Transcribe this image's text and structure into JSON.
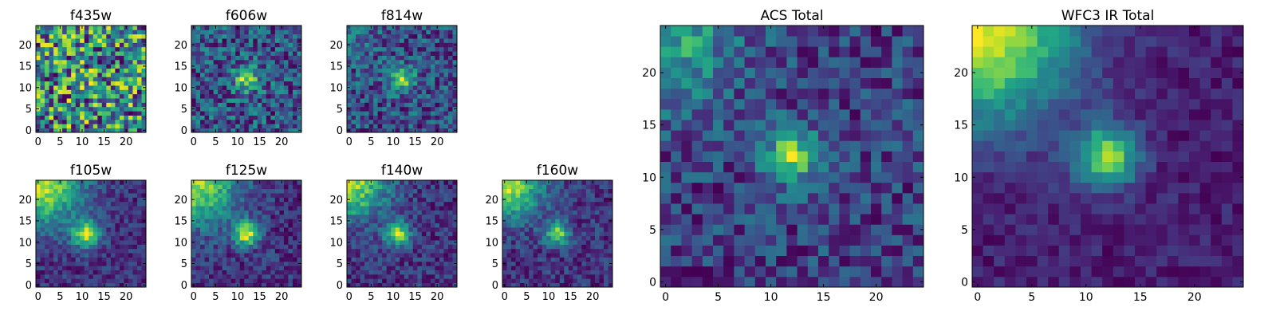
{
  "chart_data": [
    {
      "type": "heatmap",
      "title": "f435w",
      "grid_size": 25,
      "colormap": "viridis",
      "xticks": [
        0,
        5,
        10,
        15,
        20
      ],
      "yticks": [
        0,
        5,
        10,
        15,
        20
      ],
      "hotspot": {
        "x": 12,
        "y": 12,
        "strength": 0.05,
        "width": 2.0
      },
      "glow": {
        "x": 0,
        "y": 24,
        "strength": 0.0,
        "width": 6
      },
      "noise": 0.55,
      "base": 0.5,
      "seed": 11
    },
    {
      "type": "heatmap",
      "title": "f606w",
      "grid_size": 25,
      "colormap": "viridis",
      "xticks": [
        0,
        5,
        10,
        15,
        20
      ],
      "yticks": [
        0,
        5,
        10,
        15,
        20
      ],
      "hotspot": {
        "x": 12,
        "y": 12,
        "strength": 0.35,
        "width": 2.0
      },
      "glow": {
        "x": 0,
        "y": 24,
        "strength": 0.0,
        "width": 6
      },
      "noise": 0.35,
      "base": 0.45,
      "seed": 23
    },
    {
      "type": "heatmap",
      "title": "f814w",
      "grid_size": 25,
      "colormap": "viridis",
      "xticks": [
        0,
        5,
        10,
        15,
        20
      ],
      "yticks": [
        0,
        5,
        10,
        15,
        20
      ],
      "hotspot": {
        "x": 12,
        "y": 12,
        "strength": 0.45,
        "width": 2.0
      },
      "glow": {
        "x": 0,
        "y": 24,
        "strength": 0.1,
        "width": 6
      },
      "noise": 0.4,
      "base": 0.5,
      "seed": 37
    },
    {
      "type": "heatmap",
      "title": "f105w",
      "grid_size": 25,
      "colormap": "viridis",
      "xticks": [
        0,
        5,
        10,
        15,
        20
      ],
      "yticks": [
        0,
        5,
        10,
        15,
        20
      ],
      "hotspot": {
        "x": 11,
        "y": 12,
        "strength": 0.5,
        "width": 2.3
      },
      "glow": {
        "x": 0,
        "y": 24,
        "strength": 0.55,
        "width": 7
      },
      "noise": 0.2,
      "base": 0.4,
      "seed": 41
    },
    {
      "type": "heatmap",
      "title": "f125w",
      "grid_size": 25,
      "colormap": "viridis",
      "xticks": [
        0,
        5,
        10,
        15,
        20
      ],
      "yticks": [
        0,
        5,
        10,
        15,
        20
      ],
      "hotspot": {
        "x": 12,
        "y": 12,
        "strength": 0.55,
        "width": 2.0
      },
      "glow": {
        "x": 0,
        "y": 24,
        "strength": 0.5,
        "width": 7
      },
      "noise": 0.22,
      "base": 0.45,
      "seed": 53
    },
    {
      "type": "heatmap",
      "title": "f140w",
      "grid_size": 25,
      "colormap": "viridis",
      "xticks": [
        0,
        5,
        10,
        15,
        20
      ],
      "yticks": [
        0,
        5,
        10,
        15,
        20
      ],
      "hotspot": {
        "x": 11,
        "y": 12,
        "strength": 0.55,
        "width": 2.0
      },
      "glow": {
        "x": 0,
        "y": 24,
        "strength": 0.55,
        "width": 6
      },
      "noise": 0.25,
      "base": 0.4,
      "seed": 67
    },
    {
      "type": "heatmap",
      "title": "f160w",
      "grid_size": 25,
      "colormap": "viridis",
      "xticks": [
        0,
        5,
        10,
        15,
        20
      ],
      "yticks": [
        0,
        5,
        10,
        15,
        20
      ],
      "hotspot": {
        "x": 12,
        "y": 12,
        "strength": 0.5,
        "width": 2.0
      },
      "glow": {
        "x": 0,
        "y": 24,
        "strength": 0.6,
        "width": 6
      },
      "noise": 0.25,
      "base": 0.35,
      "seed": 79
    },
    {
      "type": "heatmap",
      "title": "ACS Total",
      "grid_size": 25,
      "colormap": "viridis",
      "xticks": [
        0,
        5,
        10,
        15,
        20
      ],
      "yticks": [
        0,
        5,
        10,
        15,
        20
      ],
      "hotspot": {
        "x": 12,
        "y": 12,
        "strength": 0.5,
        "width": 1.8
      },
      "glow": {
        "x": 0,
        "y": 24,
        "strength": 0.3,
        "width": 5
      },
      "noise": 0.3,
      "base": 0.5,
      "seed": 97
    },
    {
      "type": "heatmap",
      "title": "WFC3 IR Total",
      "grid_size": 25,
      "colormap": "viridis",
      "xticks": [
        0,
        5,
        10,
        15,
        20
      ],
      "yticks": [
        0,
        5,
        10,
        15,
        20
      ],
      "hotspot": {
        "x": 12,
        "y": 12,
        "strength": 0.55,
        "width": 2.0
      },
      "glow": {
        "x": 0,
        "y": 24,
        "strength": 0.65,
        "width": 6
      },
      "noise": 0.13,
      "base": 0.35,
      "seed": 101
    }
  ]
}
